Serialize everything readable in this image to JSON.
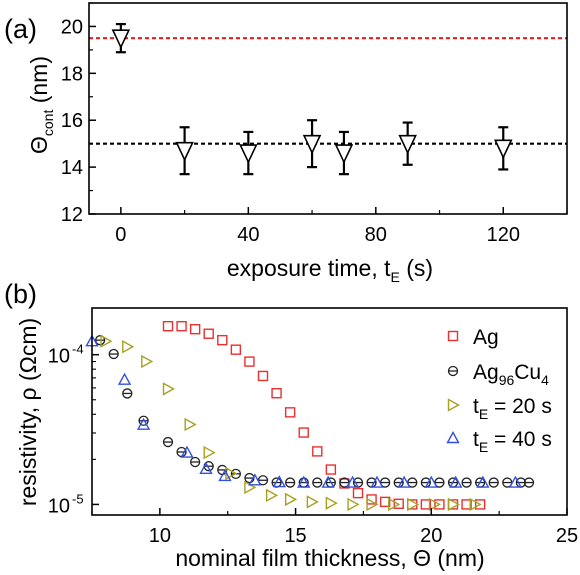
{
  "chart_data": [
    {
      "panel_label": "(a)",
      "type": "scatter",
      "xlabel": "exposure time, t",
      "xlabel_sub": "E",
      "xlabel_unit": " (s)",
      "ylabel": "Θ",
      "ylabel_sub": "cont",
      "ylabel_unit": " (nm)",
      "xlim": [
        -10,
        140
      ],
      "ylim": [
        12,
        21
      ],
      "xticks": [
        0,
        40,
        80,
        120
      ],
      "yticks": [
        12,
        14,
        16,
        18,
        20
      ],
      "series": [
        {
          "marker": "down-triangle",
          "color": "#000000",
          "x": [
            0,
            20,
            40,
            60,
            70,
            90,
            120
          ],
          "y": [
            19.5,
            14.7,
            14.6,
            15.0,
            14.6,
            15.0,
            14.8
          ],
          "err": [
            0.6,
            1.0,
            0.9,
            1.0,
            0.9,
            0.9,
            0.9
          ]
        }
      ],
      "reference_lines": [
        {
          "y": 19.5,
          "color": "#e02020",
          "style": "dashed"
        },
        {
          "y": 15.0,
          "color": "#000000",
          "style": "dashed"
        }
      ]
    },
    {
      "panel_label": "(b)",
      "type": "scatter",
      "yscale": "log",
      "xlabel": "nominal film thickness, Θ (nm)",
      "ylabel": "resistivity, ρ (Ωcm)",
      "xlim": [
        7.5,
        25
      ],
      "ylim": [
        8.5e-06,
        0.000205
      ],
      "xticks": [
        10,
        15,
        20,
        25
      ],
      "ytick_labels": [
        {
          "value": 0.0001,
          "base": "10",
          "exp": "-4"
        },
        {
          "value": 1e-05,
          "base": "10",
          "exp": "-5"
        }
      ],
      "legend_position": "top-right",
      "series": [
        {
          "name": "Ag",
          "marker": "square",
          "color": "#e83030",
          "x": [
            10.3,
            10.8,
            11.3,
            11.8,
            12.3,
            12.8,
            13.3,
            13.8,
            14.3,
            14.8,
            15.3,
            15.8,
            16.3,
            16.8,
            17.3,
            17.8,
            18.3,
            18.8,
            19.3,
            19.8,
            20.3,
            20.8,
            21.3,
            21.8
          ],
          "y": [
            0.000155,
            0.000155,
            0.000148,
            0.000138,
            0.000125,
            0.000108,
            8.99e-05,
            7.21e-05,
            5.53e-05,
            4.12e-05,
            3.02e-05,
            2.26e-05,
            1.71e-05,
            1.38e-05,
            1.19e-05,
            1.08e-05,
            1.04e-05,
            1.01e-05,
            1e-05,
            1e-05,
            1e-05,
            1e-05,
            1e-05,
            1e-05
          ]
        },
        {
          "name": "Ag",
          "name_sub1": "96",
          "name_mid": "Cu",
          "name_sub2": "4",
          "marker": "circle-bar",
          "color": "#222222",
          "x": [
            7.8,
            8.3,
            8.8,
            9.4,
            10.3,
            10.8,
            11.3,
            11.8,
            12.3,
            12.8,
            13.3,
            13.8,
            14.3,
            14.8,
            15.3,
            15.8,
            16.3,
            16.8,
            17.3,
            17.8,
            18.3,
            18.8,
            19.3,
            19.8,
            20.3,
            20.8,
            21.3,
            21.8,
            22.3,
            22.8,
            23.3,
            23.6
          ],
          "y": [
            0.000125,
            0.000101,
            5.51e-05,
            3.62e-05,
            2.61e-05,
            2.24e-05,
            1.92e-05,
            1.8e-05,
            1.7e-05,
            1.6e-05,
            1.5e-05,
            1.45e-05,
            1.4e-05,
            1.4e-05,
            1.4e-05,
            1.4e-05,
            1.4e-05,
            1.4e-05,
            1.4e-05,
            1.4e-05,
            1.4e-05,
            1.4e-05,
            1.4e-05,
            1.4e-05,
            1.4e-05,
            1.4e-05,
            1.4e-05,
            1.4e-05,
            1.4e-05,
            1.4e-05,
            1.4e-05,
            1.4e-05
          ]
        },
        {
          "name": "t",
          "name_sub1": "E",
          "name_rest": " = 20 s",
          "marker": "right-triangle",
          "color": "#a8a020",
          "x": [
            8.0,
            8.8,
            9.5,
            10.3,
            11.1,
            11.8,
            12.6,
            13.3,
            14.1,
            14.8,
            15.6,
            16.3,
            17.1,
            17.8,
            18.6,
            19.3,
            20.1,
            20.8,
            21.6
          ],
          "y": [
            0.000123,
            0.000113,
            9.01e-05,
            5.91e-05,
            3.42e-05,
            2.22e-05,
            1.61e-05,
            1.3e-05,
            1.15e-05,
            1.08e-05,
            1.04e-05,
            1.02e-05,
            1e-05,
            1e-05,
            1e-05,
            1e-05,
            1e-05,
            1e-05,
            1e-05
          ]
        },
        {
          "name": "t",
          "name_sub1": "E",
          "name_rest": " = 40 s",
          "marker": "up-triangle",
          "color": "#3050e0",
          "x": [
            7.5,
            8.7,
            9.4,
            11.0,
            11.7,
            12.4,
            13.5,
            14.4,
            15.3,
            16.2,
            17.1,
            18.0,
            19.0,
            20.0,
            20.9,
            21.9,
            23.1
          ],
          "y": [
            0.000123,
            6.81e-05,
            3.41e-05,
            2.22e-05,
            1.73e-05,
            1.55e-05,
            1.45e-05,
            1.41e-05,
            1.4e-05,
            1.4e-05,
            1.4e-05,
            1.4e-05,
            1.4e-05,
            1.4e-05,
            1.4e-05,
            1.4e-05,
            1.4e-05
          ]
        }
      ]
    }
  ]
}
